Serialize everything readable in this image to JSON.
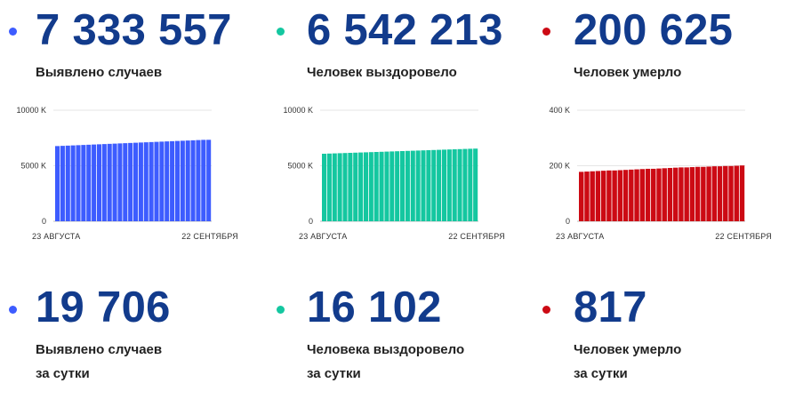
{
  "top": [
    {
      "value": "7 333 557",
      "label": "Выявлено случаев",
      "color": "#3d5cff"
    },
    {
      "value": "6 542 213",
      "label": "Человек выздоровело",
      "color": "#14c7a0"
    },
    {
      "value": "200 625",
      "label": "Человек умерло",
      "color": "#cc0a14"
    }
  ],
  "bottom": [
    {
      "value": "19 706",
      "label": "Выявлено случаев",
      "label2": "за сутки",
      "color": "#3d5cff"
    },
    {
      "value": "16 102",
      "label": "Человека выздоровело",
      "label2": "за сутки",
      "color": "#14c7a0"
    },
    {
      "value": "817",
      "label": "Человек умерло",
      "label2": "за сутки",
      "color": "#cc0a14"
    }
  ],
  "chart_data": [
    {
      "type": "bar",
      "ylim": [
        0,
        10000
      ],
      "yticks": [
        0,
        5000,
        10000
      ],
      "ytick_labels": [
        "0",
        "5000 K",
        "10000 K"
      ],
      "x_start_label": "23 АВГУСТА",
      "x_end_label": "22 СЕНТЯБРЯ",
      "color": "#3d5cff",
      "values": [
        6770,
        6790,
        6810,
        6830,
        6850,
        6870,
        6890,
        6910,
        6930,
        6950,
        6970,
        6990,
        7010,
        7030,
        7050,
        7070,
        7090,
        7110,
        7130,
        7150,
        7170,
        7190,
        7210,
        7230,
        7250,
        7270,
        7290,
        7310,
        7330,
        7334
      ]
    },
    {
      "type": "bar",
      "ylim": [
        0,
        10000
      ],
      "yticks": [
        0,
        5000,
        10000
      ],
      "ytick_labels": [
        "0",
        "5000 K",
        "10000 K"
      ],
      "x_start_label": "23 АВГУСТА",
      "x_end_label": "22 СЕНТЯБРЯ",
      "color": "#14c7a0",
      "values": [
        6080,
        6096,
        6112,
        6128,
        6144,
        6160,
        6176,
        6192,
        6208,
        6224,
        6240,
        6256,
        6272,
        6288,
        6304,
        6320,
        6336,
        6352,
        6368,
        6384,
        6400,
        6416,
        6432,
        6448,
        6464,
        6480,
        6496,
        6512,
        6528,
        6542
      ]
    },
    {
      "type": "bar",
      "ylim": [
        0,
        400
      ],
      "yticks": [
        0,
        200,
        400
      ],
      "ytick_labels": [
        "0",
        "200 K",
        "400 K"
      ],
      "x_start_label": "23 АВГУСТА",
      "x_end_label": "22 СЕНТЯБРЯ",
      "color": "#cc0a14",
      "values": [
        178,
        179,
        180,
        181,
        182,
        183,
        183,
        184,
        185,
        186,
        187,
        188,
        189,
        189,
        190,
        191,
        192,
        193,
        194,
        194,
        195,
        196,
        196,
        197,
        198,
        198,
        199,
        199,
        200,
        201
      ]
    }
  ]
}
